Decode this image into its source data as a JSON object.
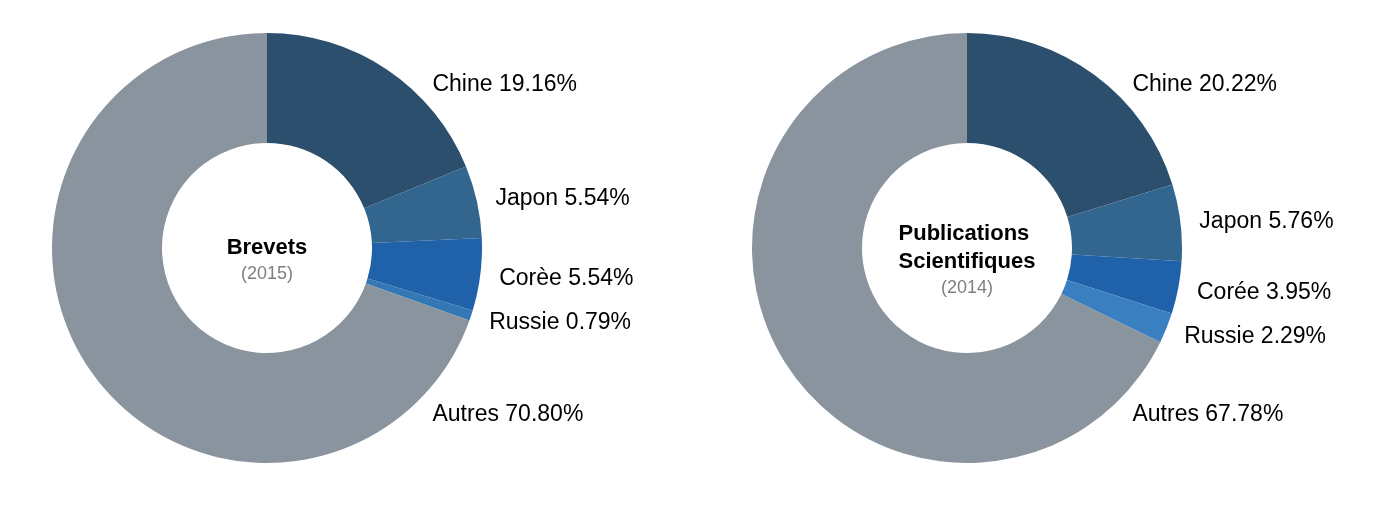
{
  "chart_data": [
    {
      "type": "donut",
      "title": "Brevets",
      "subtitle": "(2015)",
      "categories": [
        "Chine",
        "Japon",
        "Corèe",
        "Russie",
        "Autres"
      ],
      "values": [
        19.16,
        5.54,
        5.54,
        0.79,
        70.8
      ],
      "value_labels": [
        "19.16%",
        "5.54%",
        "5.54%",
        "0.79%",
        "70.80%"
      ],
      "colors": [
        "#2d4f6e",
        "#33668f",
        "#1f62a9",
        "#3477b5",
        "#8a949f"
      ]
    },
    {
      "type": "donut",
      "title": "Publications Scientifiques",
      "subtitle": "(2014)",
      "categories": [
        "Chine",
        "Japon",
        "Corée",
        "Russie",
        "Autres"
      ],
      "values": [
        20.22,
        5.76,
        3.95,
        2.29,
        67.78
      ],
      "value_labels": [
        "20.22%",
        "5.76%",
        "3.95%",
        "2.29%",
        "67.78%"
      ],
      "colors": [
        "#2d4f6e",
        "#33668f",
        "#1f62a9",
        "#3a7fc0",
        "#8a949f"
      ]
    }
  ]
}
